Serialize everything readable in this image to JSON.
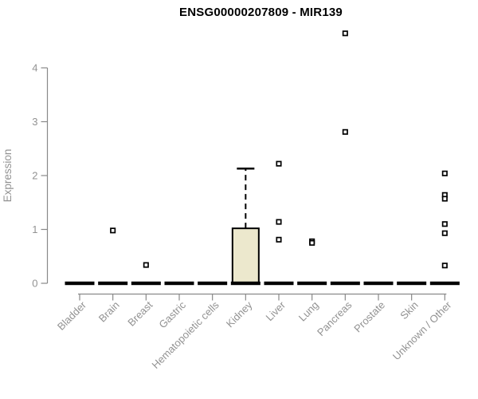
{
  "chart_data": {
    "type": "boxplot",
    "title": "ENSG00000207809 - MIR139",
    "ylabel": "Expression",
    "xlabel": "",
    "ylim": [
      0,
      4
    ],
    "yticks": [
      0,
      1,
      2,
      3,
      4
    ],
    "grid": false,
    "legend": false,
    "categories": [
      "Bladder",
      "Brain",
      "Breast",
      "Gastric",
      "Hematopoietic cells",
      "Kidney",
      "Liver",
      "Lung",
      "Pancreas",
      "Prostate",
      "Skin",
      "Unknown / Other"
    ],
    "series": [
      {
        "category": "Bladder",
        "median": 0,
        "q1": 0,
        "q3": 0,
        "whisker_low": 0,
        "whisker_high": 0,
        "outliers": []
      },
      {
        "category": "Brain",
        "median": 0,
        "q1": 0,
        "q3": 0,
        "whisker_low": 0,
        "whisker_high": 0,
        "outliers": [
          0.98
        ]
      },
      {
        "category": "Breast",
        "median": 0,
        "q1": 0,
        "q3": 0,
        "whisker_low": 0,
        "whisker_high": 0,
        "outliers": [
          0.34
        ]
      },
      {
        "category": "Gastric",
        "median": 0,
        "q1": 0,
        "q3": 0,
        "whisker_low": 0,
        "whisker_high": 0,
        "outliers": []
      },
      {
        "category": "Hematopoietic cells",
        "median": 0,
        "q1": 0,
        "q3": 0,
        "whisker_low": 0,
        "whisker_high": 0,
        "outliers": []
      },
      {
        "category": "Kidney",
        "median": 0,
        "q1": 0,
        "q3": 1.02,
        "whisker_low": 0,
        "whisker_high": 2.13,
        "outliers": []
      },
      {
        "category": "Liver",
        "median": 0,
        "q1": 0,
        "q3": 0,
        "whisker_low": 0,
        "whisker_high": 0,
        "outliers": [
          2.22,
          1.14,
          0.81
        ]
      },
      {
        "category": "Lung",
        "median": 0,
        "q1": 0,
        "q3": 0,
        "whisker_low": 0,
        "whisker_high": 0,
        "outliers": [
          0.78,
          0.75
        ]
      },
      {
        "category": "Pancreas",
        "median": 0,
        "q1": 0,
        "q3": 0,
        "whisker_low": 0,
        "whisker_high": 0,
        "outliers": [
          4.64,
          2.81
        ]
      },
      {
        "category": "Prostate",
        "median": 0,
        "q1": 0,
        "q3": 0,
        "whisker_low": 0,
        "whisker_high": 0,
        "outliers": []
      },
      {
        "category": "Skin",
        "median": 0,
        "q1": 0,
        "q3": 0,
        "whisker_low": 0,
        "whisker_high": 0,
        "outliers": []
      },
      {
        "category": "Unknown / Other",
        "median": 0,
        "q1": 0,
        "q3": 0,
        "whisker_low": 0,
        "whisker_high": 0,
        "outliers": [
          2.04,
          1.64,
          1.57,
          1.1,
          0.93,
          0.33
        ]
      }
    ],
    "colors": {
      "box_fill": "#ece8cd",
      "box_stroke": "#000000",
      "axis": "#898989",
      "tick_label": "#929292",
      "title": "#000000",
      "outlier": "#000000",
      "zero_bar": "#000000",
      "background": "#ffffff"
    }
  }
}
